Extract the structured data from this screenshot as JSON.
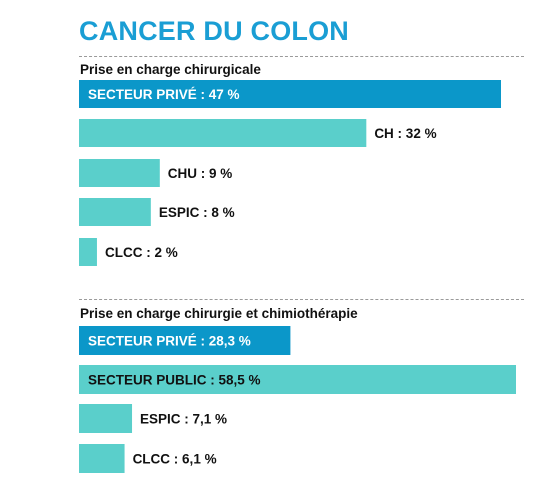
{
  "title": "CANCER DU COLON",
  "colors": {
    "title": "#1a9ed4",
    "private": "#0b97c9",
    "other": "#5acfcb",
    "text": "#111111",
    "inside_text": "#ffffff",
    "public_text": "#111111"
  },
  "chart_data": [
    {
      "type": "bar",
      "orientation": "horizontal",
      "title": "Prise en charge chirurgicale",
      "xlim": [
        0,
        47
      ],
      "categories": [
        "SECTEUR PRIVÉ",
        "CH",
        "CHU",
        "ESPIC",
        "CLCC"
      ],
      "values": [
        47,
        32,
        9,
        8,
        2
      ],
      "labels": [
        "SECTEUR PRIVÉ : 47 %",
        "CH : 32 %",
        "CHU : 9 %",
        "ESPIC : 8 %",
        "CLCC : 2 %"
      ],
      "label_inside": [
        true,
        false,
        false,
        false,
        false
      ],
      "highlight": [
        true,
        false,
        false,
        false,
        false
      ]
    },
    {
      "type": "bar",
      "orientation": "horizontal",
      "title": "Prise en charge chirurgie et chimiothérapie",
      "xlim": [
        0,
        58.5
      ],
      "categories": [
        "SECTEUR PRIVÉ",
        "SECTEUR PUBLIC",
        "ESPIC",
        "CLCC"
      ],
      "values": [
        28.3,
        58.5,
        7.1,
        6.1
      ],
      "labels": [
        "SECTEUR PRIVÉ : 28,3 %",
        "SECTEUR PUBLIC : 58,5 %",
        "ESPIC : 7,1 %",
        "CLCC : 6,1 %"
      ],
      "label_inside": [
        true,
        true,
        false,
        false
      ],
      "highlight": [
        true,
        false,
        false,
        false
      ]
    }
  ]
}
